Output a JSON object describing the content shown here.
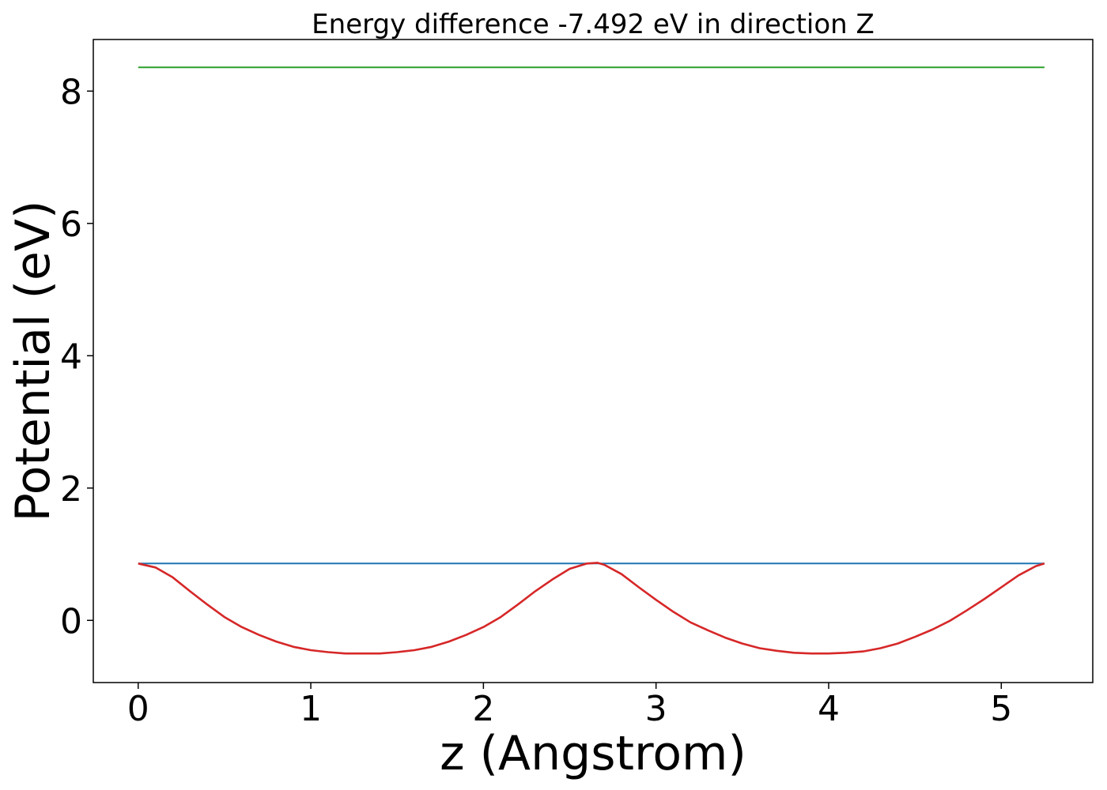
{
  "chart_data": {
    "type": "line",
    "title": "Energy difference -7.492 eV in direction Z",
    "xlabel": "z (Angstrom)",
    "ylabel": "Potential (eV)",
    "xlim": [
      -0.26,
      5.53
    ],
    "ylim": [
      -0.94,
      8.78
    ],
    "xticks": [
      0,
      1,
      2,
      3,
      4,
      5
    ],
    "yticks": [
      0,
      2,
      4,
      6,
      8
    ],
    "grid": false,
    "series": [
      {
        "color": "#2ca02c",
        "x": [
          0,
          5.25
        ],
        "y": [
          8.36,
          8.36
        ]
      },
      {
        "color": "#1f77b4",
        "x": [
          0,
          5.25
        ],
        "y": [
          0.86,
          0.86
        ]
      },
      {
        "color": "#d62728",
        "x": [
          0.0,
          0.1,
          0.2,
          0.3,
          0.4,
          0.5,
          0.6,
          0.7,
          0.8,
          0.9,
          1.0,
          1.1,
          1.2,
          1.33,
          1.4,
          1.5,
          1.6,
          1.7,
          1.8,
          1.9,
          2.0,
          2.1,
          2.2,
          2.3,
          2.4,
          2.5,
          2.6,
          2.66,
          2.7,
          2.8,
          2.9,
          3.0,
          3.1,
          3.2,
          3.3,
          3.4,
          3.5,
          3.6,
          3.7,
          3.8,
          3.9,
          4.0,
          4.1,
          4.2,
          4.3,
          4.4,
          4.5,
          4.6,
          4.7,
          4.8,
          4.9,
          5.0,
          5.1,
          5.2,
          5.25
        ],
        "y": [
          0.86,
          0.8,
          0.65,
          0.44,
          0.24,
          0.05,
          -0.1,
          -0.22,
          -0.32,
          -0.4,
          -0.45,
          -0.48,
          -0.5,
          -0.5,
          -0.5,
          -0.48,
          -0.45,
          -0.4,
          -0.32,
          -0.22,
          -0.1,
          0.05,
          0.24,
          0.44,
          0.62,
          0.78,
          0.86,
          0.87,
          0.84,
          0.7,
          0.5,
          0.31,
          0.13,
          -0.03,
          -0.15,
          -0.26,
          -0.35,
          -0.42,
          -0.46,
          -0.49,
          -0.5,
          -0.5,
          -0.49,
          -0.47,
          -0.42,
          -0.35,
          -0.25,
          -0.14,
          -0.01,
          0.15,
          0.32,
          0.5,
          0.68,
          0.82,
          0.86
        ]
      }
    ]
  }
}
